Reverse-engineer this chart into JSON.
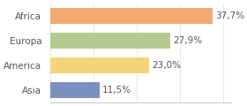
{
  "categories": [
    "Africa",
    "Europa",
    "America",
    "Asia"
  ],
  "values": [
    37.7,
    27.9,
    23.0,
    11.5
  ],
  "labels": [
    "37,7%",
    "27,9%",
    "23,0%",
    "11,5%"
  ],
  "bar_colors": [
    "#f0a96e",
    "#b5c98e",
    "#f5d57a",
    "#7b8fc0"
  ],
  "background_color": "#ffffff",
  "xlim": [
    0,
    42
  ],
  "bar_height": 0.62,
  "label_fontsize": 7.5,
  "tick_fontsize": 7.5
}
